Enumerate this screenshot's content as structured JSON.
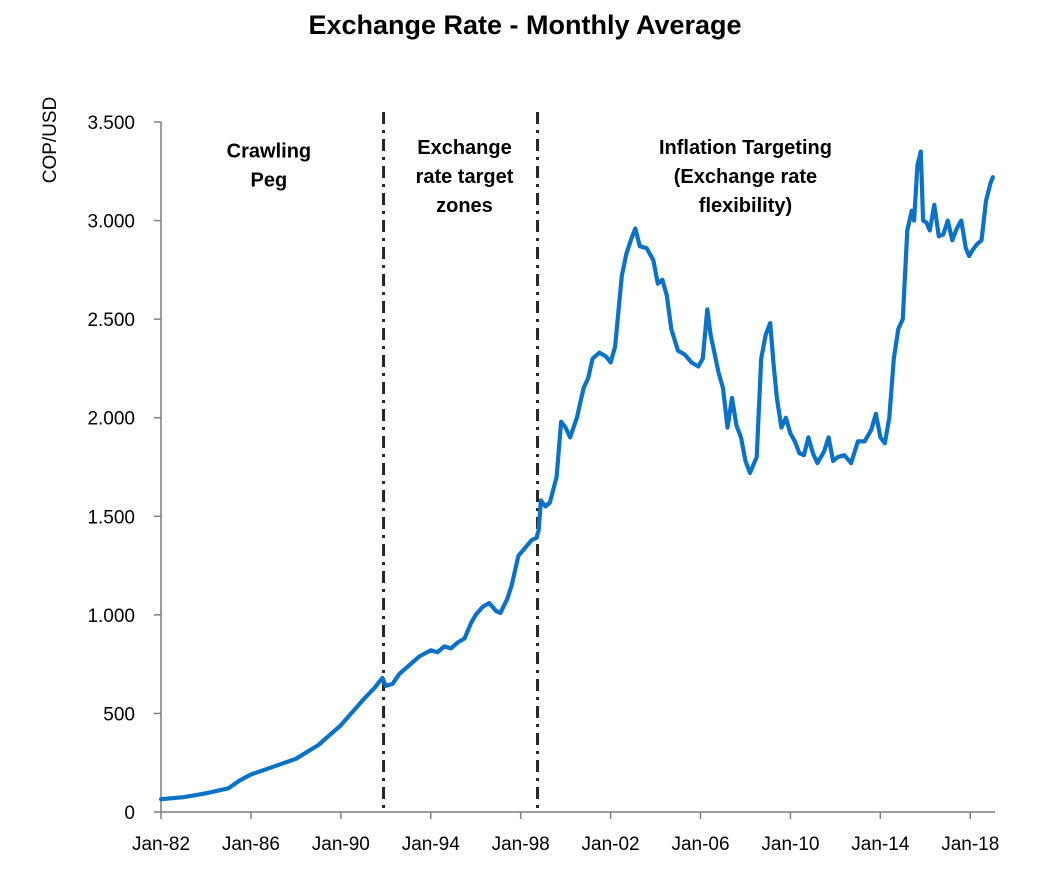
{
  "chart_data": {
    "type": "line",
    "title": "Exchange Rate - Monthly Average",
    "ylabel": "COP/USD",
    "xlabel": "",
    "ylim": [
      0,
      3500
    ],
    "yticks": [
      0,
      500,
      1000,
      1500,
      2000,
      2500,
      3000,
      3500
    ],
    "ytick_labels": [
      "0",
      "500",
      "1.000",
      "1.500",
      "2.000",
      "2.500",
      "3.000",
      "3.500"
    ],
    "xlim": [
      1982.0,
      2019.1
    ],
    "xticks": [
      1982,
      1986,
      1990,
      1994,
      1998,
      2002,
      2006,
      2010,
      2014,
      2018
    ],
    "xtick_labels": [
      "Jan-82",
      "Jan-86",
      "Jan-90",
      "Jan-94",
      "Jan-98",
      "Jan-02",
      "Jan-06",
      "Jan-10",
      "Jan-14",
      "Jan-18"
    ],
    "grid": false,
    "legend": "none",
    "color": "#0b72c6",
    "regime_breaks": [
      1991.9,
      1998.75
    ],
    "regimes": [
      {
        "lines": [
          "Crawling",
          "Peg"
        ],
        "x": 1986.8,
        "y": 3400
      },
      {
        "lines": [
          "Exchange",
          "rate target",
          "zones"
        ],
        "x": 1995.5,
        "y": 3420
      },
      {
        "lines": [
          "Inflation Targeting",
          "(Exchange rate",
          "flexibility)"
        ],
        "x": 2008.0,
        "y": 3420
      }
    ],
    "series": [
      {
        "x": [
          1982.0,
          1983.0,
          1984.0,
          1985.0,
          1985.5,
          1986.0,
          1987.0,
          1988.0,
          1989.0,
          1990.0,
          1991.0,
          1991.5,
          1991.85,
          1992.0,
          1992.3,
          1992.6,
          1993.0,
          1993.5,
          1994.0,
          1994.3,
          1994.6,
          1994.9,
          1995.2,
          1995.5,
          1995.8,
          1996.0,
          1996.3,
          1996.6,
          1996.9,
          1997.1,
          1997.4,
          1997.6,
          1997.9,
          1998.2,
          1998.5,
          1998.7,
          1998.8,
          1998.9,
          1999.1,
          1999.3,
          1999.6,
          1999.8,
          2000.0,
          2000.2,
          2000.5,
          2000.8,
          2001.0,
          2001.2,
          2001.5,
          2001.8,
          2002.0,
          2002.2,
          2002.5,
          2002.7,
          2002.9,
          2003.1,
          2003.3,
          2003.6,
          2003.9,
          2004.1,
          2004.3,
          2004.5,
          2004.7,
          2005.0,
          2005.3,
          2005.6,
          2005.9,
          2006.1,
          2006.3,
          2006.45,
          2006.6,
          2006.8,
          2007.0,
          2007.2,
          2007.4,
          2007.6,
          2007.8,
          2008.0,
          2008.2,
          2008.5,
          2008.7,
          2008.9,
          2009.1,
          2009.25,
          2009.4,
          2009.6,
          2009.8,
          2010.0,
          2010.2,
          2010.4,
          2010.6,
          2010.8,
          2011.0,
          2011.2,
          2011.5,
          2011.7,
          2011.9,
          2012.1,
          2012.4,
          2012.7,
          2013.0,
          2013.3,
          2013.6,
          2013.8,
          2014.0,
          2014.2,
          2014.4,
          2014.6,
          2014.8,
          2015.0,
          2015.2,
          2015.4,
          2015.5,
          2015.65,
          2015.8,
          2015.9,
          2016.05,
          2016.2,
          2016.4,
          2016.6,
          2016.8,
          2017.0,
          2017.2,
          2017.4,
          2017.6,
          2017.8,
          2017.95,
          2018.1,
          2018.3,
          2018.5,
          2018.7,
          2018.9,
          2019.0
        ],
        "y": [
          65,
          75,
          95,
          120,
          160,
          190,
          230,
          270,
          340,
          440,
          570,
          630,
          680,
          640,
          650,
          700,
          740,
          790,
          820,
          810,
          840,
          830,
          860,
          880,
          960,
          1000,
          1040,
          1060,
          1020,
          1010,
          1080,
          1150,
          1300,
          1340,
          1380,
          1390,
          1430,
          1580,
          1550,
          1570,
          1700,
          1980,
          1950,
          1900,
          2000,
          2150,
          2200,
          2300,
          2330,
          2310,
          2280,
          2360,
          2720,
          2830,
          2900,
          2960,
          2870,
          2860,
          2800,
          2680,
          2700,
          2620,
          2450,
          2340,
          2320,
          2280,
          2260,
          2300,
          2550,
          2420,
          2340,
          2230,
          2150,
          1950,
          2100,
          1960,
          1900,
          1780,
          1720,
          1800,
          2300,
          2420,
          2480,
          2270,
          2100,
          1950,
          2000,
          1920,
          1880,
          1820,
          1810,
          1900,
          1820,
          1770,
          1830,
          1900,
          1780,
          1800,
          1810,
          1770,
          1880,
          1880,
          1940,
          2020,
          1900,
          1870,
          2000,
          2300,
          2450,
          2500,
          2950,
          3050,
          3000,
          3280,
          3350,
          3000,
          2990,
          2950,
          3080,
          2920,
          2930,
          3000,
          2900,
          2960,
          3000,
          2860,
          2820,
          2850,
          2880,
          2900,
          3100,
          3190,
          3220
        ]
      }
    ]
  }
}
